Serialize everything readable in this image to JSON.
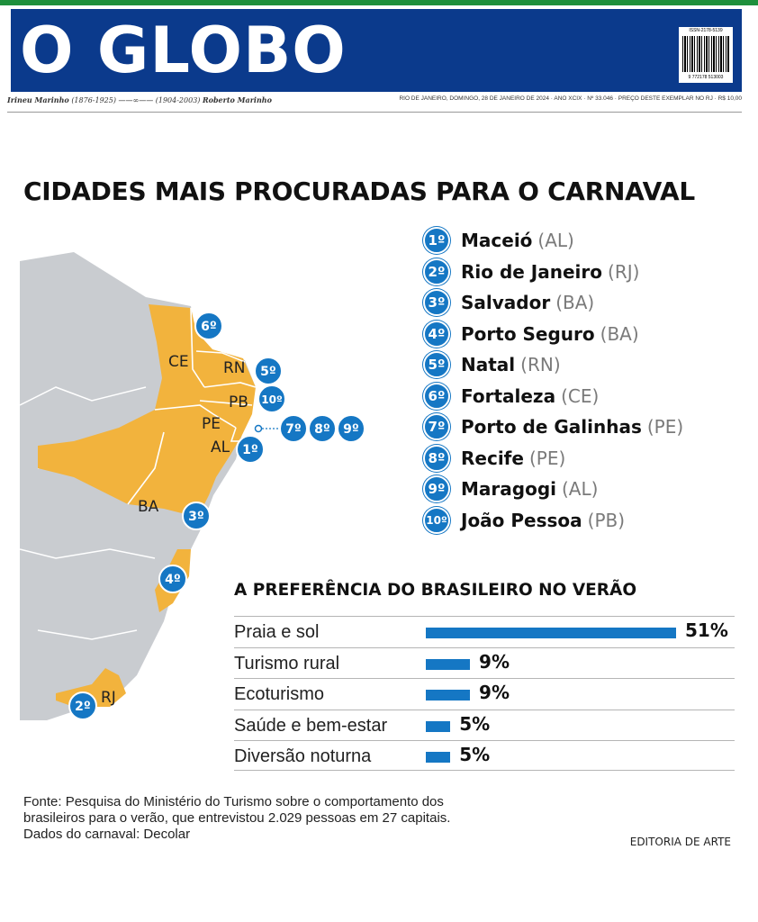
{
  "masthead": {
    "logo": "O GLOBO",
    "founder_left": "Irineu Marinho",
    "founder_left_years": "(1876-1925)",
    "founder_right_years": "(1904-2003)",
    "founder_right": "Roberto Marinho",
    "edition_info": "RIO DE JANEIRO, DOMINGO, 28 DE JANEIRO DE 2024 · ANO XCIX · Nº 33.046 · PREÇO DESTE EXEMPLAR NO RJ · R$ 10,00",
    "issn": "ISSN-2178-5139",
    "barcode_number": "9 772178 513003"
  },
  "title": "CIDADES MAIS PROCURADAS PARA O CARNAVAL",
  "map": {
    "state_labels": [
      "CE",
      "RN",
      "PB",
      "PE",
      "AL",
      "BA",
      "RJ"
    ],
    "colors": {
      "highlight_state": "#f2b33d",
      "other_land": "#c9ccd0",
      "borders": "#ffffff",
      "badge": "#1577c4"
    }
  },
  "ranking": [
    {
      "rank": "1º",
      "city": "Maceió",
      "state": "(AL)"
    },
    {
      "rank": "2º",
      "city": "Rio de Janeiro",
      "state": "(RJ)"
    },
    {
      "rank": "3º",
      "city": "Salvador",
      "state": "(BA)"
    },
    {
      "rank": "4º",
      "city": "Porto Seguro",
      "state": "(BA)"
    },
    {
      "rank": "5º",
      "city": "Natal",
      "state": "(RN)"
    },
    {
      "rank": "6º",
      "city": "Fortaleza",
      "state": "(CE)"
    },
    {
      "rank": "7º",
      "city": "Porto de Galinhas",
      "state": "(PE)"
    },
    {
      "rank": "8º",
      "city": "Recife",
      "state": "(PE)"
    },
    {
      "rank": "9º",
      "city": "Maragogi",
      "state": "(AL)"
    },
    {
      "rank": "10º",
      "city": "João Pessoa",
      "state": "(PB)"
    }
  ],
  "chart_data": {
    "type": "bar",
    "title": "A PREFERÊNCIA DO BRASILEIRO NO VERÃO",
    "orientation": "horizontal",
    "categories": [
      "Praia e sol",
      "Turismo rural",
      "Ecoturismo",
      "Saúde e bem-estar",
      "Diversão noturna"
    ],
    "values": [
      51,
      9,
      9,
      5,
      5
    ],
    "value_labels": [
      "51%",
      "9%",
      "9%",
      "5%",
      "5%"
    ],
    "xlim": [
      0,
      51
    ],
    "unit": "%",
    "bar_color": "#1577c4",
    "grid": false
  },
  "footer": {
    "source_lines": [
      "Fonte: Pesquisa do Ministério do Turismo sobre o comportamento dos",
      "brasileiros para o verão, que entrevistou 2.029 pessoas em 27 capitais.",
      "Dados do carnaval: Decolar"
    ],
    "credit": "EDITORIA DE ARTE"
  }
}
